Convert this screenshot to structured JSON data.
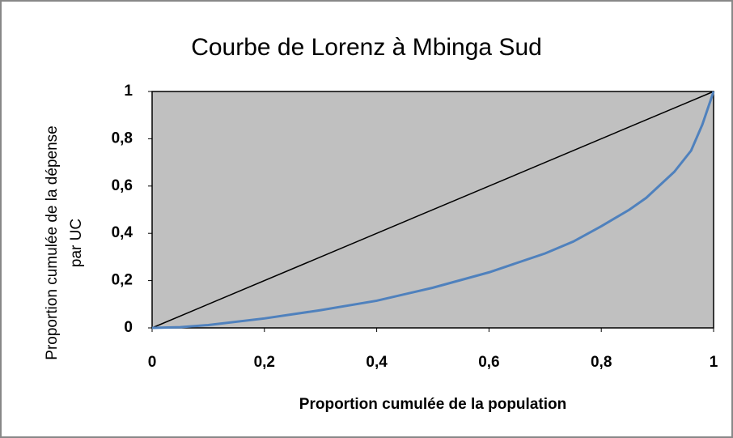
{
  "chart_data": {
    "type": "line",
    "title": "Courbe de Lorenz à Mbinga Sud",
    "xlabel": "Proportion cumulée de la population",
    "ylabel": [
      "Proportion cumulée de la dépense",
      "par UC"
    ],
    "series": [
      {
        "color": "#000000",
        "x": [
          0,
          1
        ],
        "values": [
          0,
          1
        ]
      },
      {
        "color": "#4f81bd",
        "x": [
          0,
          0.05,
          0.1,
          0.2,
          0.3,
          0.4,
          0.5,
          0.6,
          0.7,
          0.75,
          0.8,
          0.85,
          0.88,
          0.93,
          0.96,
          0.98,
          1
        ],
        "values": [
          0,
          0.003,
          0.012,
          0.04,
          0.075,
          0.115,
          0.17,
          0.235,
          0.315,
          0.365,
          0.43,
          0.5,
          0.55,
          0.66,
          0.75,
          0.86,
          1
        ]
      }
    ],
    "xlim": [
      0,
      1
    ],
    "ylim": [
      0,
      1
    ],
    "xticks": [
      0,
      {
        "value": 0.2,
        "label": "0,2"
      },
      {
        "value": 0.4,
        "label": "0,4"
      },
      {
        "value": 0.6,
        "label": "0,6"
      },
      {
        "value": 0.8,
        "label": "0,8"
      },
      1
    ],
    "yticks": [
      0,
      {
        "value": 0.2,
        "label": "0,2"
      },
      {
        "value": 0.4,
        "label": "0,4"
      },
      {
        "value": 0.6,
        "label": "0,6"
      },
      {
        "value": 0.8,
        "label": "0,8"
      },
      1
    ],
    "plot_background": "#c0c0c0"
  }
}
